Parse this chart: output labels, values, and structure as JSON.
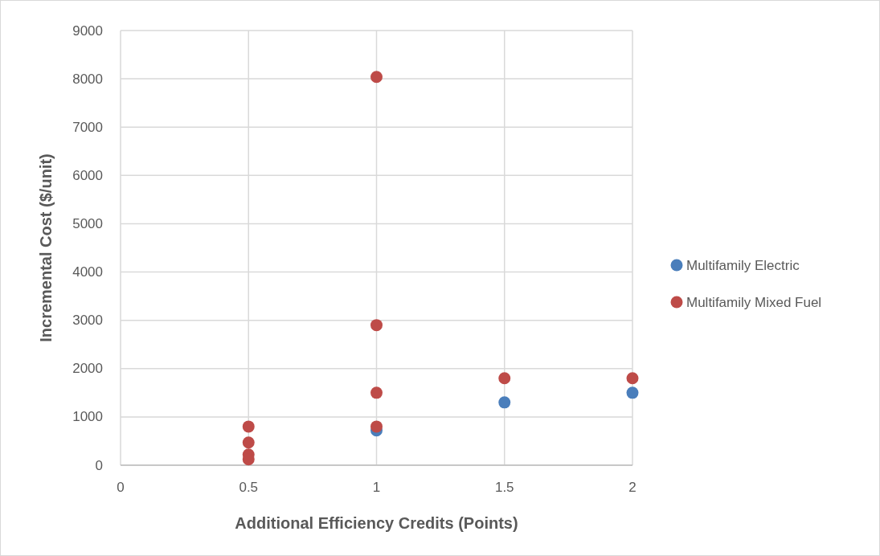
{
  "chart_data": {
    "type": "scatter",
    "xlabel": "Additional Efficiency Credits (Points)",
    "ylabel": "Incremental Cost ($/unit)",
    "xlim": [
      0,
      2
    ],
    "xticks": [
      0,
      0.5,
      1,
      1.5,
      2
    ],
    "ylim": [
      0,
      9000
    ],
    "yticks": [
      0,
      1000,
      2000,
      3000,
      4000,
      5000,
      6000,
      7000,
      8000,
      9000
    ],
    "grid": true,
    "legend": "right",
    "marker": "circle",
    "series": [
      {
        "name": "Multifamily Electric",
        "color": "#4a7ebb",
        "x": [
          1,
          1.5,
          2
        ],
        "values": [
          720,
          1300,
          1500
        ]
      },
      {
        "name": "Multifamily Mixed Fuel",
        "color": "#be4b48",
        "x": [
          0.5,
          0.5,
          0.5,
          0.5,
          1,
          1,
          1,
          1,
          1.5,
          2
        ],
        "values": [
          800,
          470,
          220,
          120,
          8040,
          2900,
          1500,
          800,
          1800,
          1800
        ]
      }
    ]
  }
}
